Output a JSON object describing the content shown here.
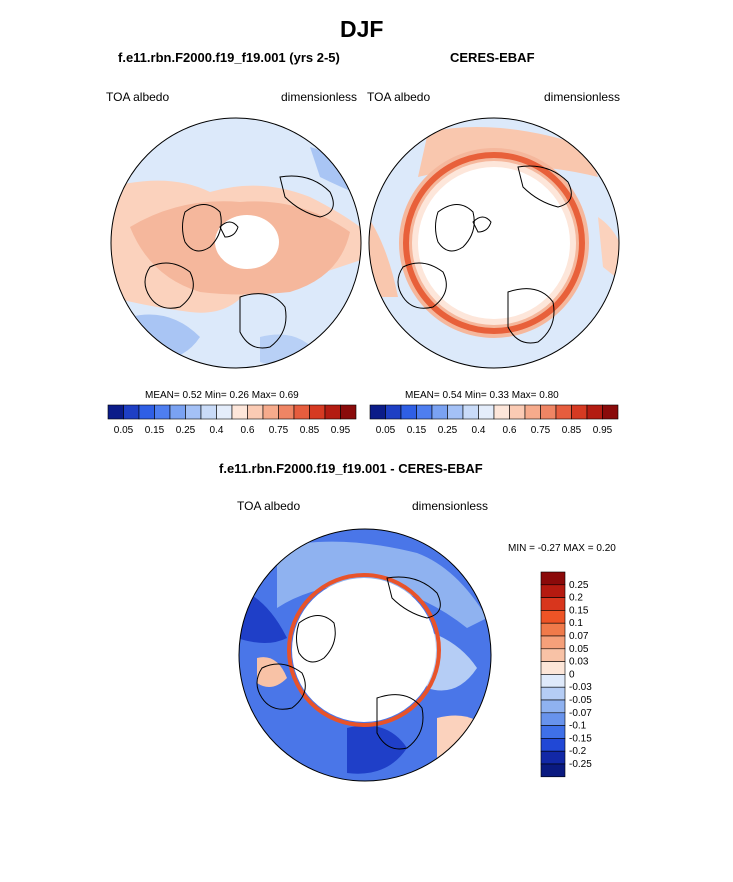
{
  "figure": {
    "title": "DJF",
    "colors": {
      "red_dark": "#8b0a0a",
      "red": "#e8532a",
      "pink": "#f6b79b",
      "light_pink": "#fde3d7",
      "light_blue": "#dce9fa",
      "mid_blue": "#8eb3ef",
      "blue": "#2e5ee6",
      "navy": "#0a1a8c",
      "land_line": "#000000"
    }
  },
  "panels": [
    {
      "id": "model",
      "title": "f.e11.rbn.F2000.f19_f19.001 (yrs 2-5)",
      "left_label": "TOA albedo",
      "right_label": "dimensionless",
      "stats": {
        "mean_label": "MEAN=",
        "mean": "0.52",
        "min_label": "Min=",
        "min": "0.26",
        "max_label": "Max=",
        "max": "0.69"
      }
    },
    {
      "id": "obs",
      "title": "CERES-EBAF",
      "left_label": "TOA albedo",
      "right_label": "dimensionless",
      "stats": {
        "mean_label": "MEAN=",
        "mean": "0.54",
        "min_label": "Min=",
        "min": "0.33",
        "max_label": "Max=",
        "max": "0.80"
      }
    }
  ],
  "diff_panel": {
    "title": "f.e11.rbn.F2000.f19_f19.001 - CERES-EBAF",
    "left_label": "TOA albedo",
    "right_label": "dimensionless",
    "min_max_text": "MIN =  -0.27 MAX =   0.20"
  },
  "chart_data": [
    {
      "type": "heatmap",
      "projection": "north-polar-stereographic",
      "title": "f.e11.rbn.F2000.f19_f19.001 (yrs 2-5)",
      "variable": "TOA albedo",
      "units": "dimensionless",
      "mean": 0.52,
      "min": 0.26,
      "max": 0.69,
      "colorbar_levels": [
        0.05,
        0.1,
        0.15,
        0.2,
        0.25,
        0.3,
        0.35,
        0.4,
        0.5,
        0.6,
        0.7,
        0.75,
        0.8,
        0.85,
        0.9,
        0.95
      ],
      "colorbar_tick_labels": [
        "0.05",
        "0.15",
        "0.25",
        "0.4",
        "0.6",
        "0.75",
        "0.85",
        "0.95"
      ],
      "colorbar_colors": [
        "#0b1c89",
        "#1e3fc4",
        "#2f5fe5",
        "#4e7ef0",
        "#7aa2f2",
        "#a4c1f6",
        "#c9dbf8",
        "#e4edfb",
        "#fde6da",
        "#fbcbb4",
        "#f6ab8c",
        "#ef8564",
        "#e65d3e",
        "#d63a22",
        "#b31c12",
        "#8a0b0b"
      ]
    },
    {
      "type": "heatmap",
      "projection": "north-polar-stereographic",
      "title": "CERES-EBAF",
      "variable": "TOA albedo",
      "units": "dimensionless",
      "mean": 0.54,
      "min": 0.33,
      "max": 0.8,
      "colorbar_levels": [
        0.05,
        0.1,
        0.15,
        0.2,
        0.25,
        0.3,
        0.35,
        0.4,
        0.5,
        0.6,
        0.7,
        0.75,
        0.8,
        0.85,
        0.9,
        0.95
      ],
      "colorbar_tick_labels": [
        "0.05",
        "0.15",
        "0.25",
        "0.4",
        "0.6",
        "0.75",
        "0.85",
        "0.95"
      ],
      "colorbar_colors": [
        "#0b1c89",
        "#1e3fc4",
        "#2f5fe5",
        "#4e7ef0",
        "#7aa2f2",
        "#a4c1f6",
        "#c9dbf8",
        "#e4edfb",
        "#fde6da",
        "#fbcbb4",
        "#f6ab8c",
        "#ef8564",
        "#e65d3e",
        "#d63a22",
        "#b31c12",
        "#8a0b0b"
      ]
    },
    {
      "type": "heatmap",
      "projection": "north-polar-stereographic",
      "title": "f.e11.rbn.F2000.f19_f19.001 - CERES-EBAF",
      "variable": "TOA albedo",
      "units": "dimensionless",
      "min": -0.27,
      "max": 0.2,
      "colorbar_tick_labels": [
        "0.25",
        "0.2",
        "0.15",
        "0.1",
        "0.07",
        "0.05",
        "0.03",
        "0",
        "-0.03",
        "-0.05",
        "-0.07",
        "-0.1",
        "-0.15",
        "-0.2",
        "-0.25"
      ],
      "colorbar_colors": [
        "#8b0a0a",
        "#b51a10",
        "#d8361d",
        "#ee5426",
        "#f07a4a",
        "#f5a07a",
        "#f8c2a6",
        "#fde6d8",
        "#dfeafb",
        "#b5cdf5",
        "#8fb2f0",
        "#6893ec",
        "#3f70e8",
        "#2148d6",
        "#1228a6",
        "#0a1a80"
      ]
    }
  ]
}
